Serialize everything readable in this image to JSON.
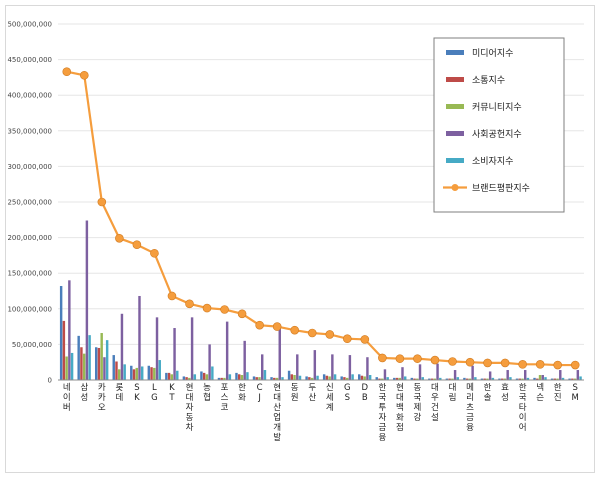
{
  "chart_data": {
    "type": "bar",
    "title": "",
    "xlabel": "",
    "ylabel": "",
    "ylim": [
      0,
      500000000
    ],
    "yticks": [
      "0",
      "50,000,000",
      "100,000,000",
      "150,000,000",
      "200,000,000",
      "250,000,000",
      "300,000,000",
      "350,000,000",
      "400,000,000",
      "450,000,000",
      "500,000,000"
    ],
    "grid": true,
    "legend_position": "top-right",
    "categories": [
      "네이버",
      "삼성",
      "카카오",
      "롯데",
      "SK",
      "LG",
      "KT",
      "현대자동차",
      "농협",
      "포스코",
      "한화",
      "CJ",
      "현대산업개발",
      "동원",
      "두산",
      "신세계",
      "GS",
      "DB",
      "한국투자금융",
      "현대백화점",
      "동국제강",
      "대우건설",
      "대림",
      "메리츠금융",
      "한솔",
      "효성",
      "한국타이어",
      "넥슨",
      "한진",
      "SM"
    ],
    "series": [
      {
        "name": "미디어지수",
        "type": "bar",
        "color": "#4a7ebb",
        "values": [
          132000000,
          62000000,
          46000000,
          35000000,
          20000000,
          20000000,
          10000000,
          5000000,
          12000000,
          3000000,
          10000000,
          5000000,
          4000000,
          13000000,
          5000000,
          8000000,
          5000000,
          8000000,
          4000000,
          3000000,
          3000000,
          2000000,
          2000000,
          3000000,
          2000000,
          2000000,
          2000000,
          3000000,
          2000000,
          2000000
        ]
      },
      {
        "name": "소통지수",
        "type": "bar",
        "color": "#be4b48",
        "values": [
          83000000,
          46000000,
          45000000,
          26000000,
          15000000,
          18000000,
          10000000,
          4000000,
          10000000,
          3000000,
          8000000,
          4000000,
          3000000,
          8000000,
          4000000,
          6000000,
          4000000,
          6000000,
          2000000,
          3000000,
          2000000,
          2000000,
          2000000,
          2000000,
          2000000,
          2000000,
          2000000,
          2000000,
          2000000,
          2000000
        ]
      },
      {
        "name": "커뮤니티지수",
        "type": "bar",
        "color": "#98b954",
        "values": [
          33000000,
          37000000,
          66000000,
          15000000,
          17000000,
          17000000,
          8000000,
          3000000,
          8000000,
          3000000,
          7000000,
          4000000,
          3000000,
          7000000,
          3000000,
          5000000,
          3000000,
          5000000,
          2000000,
          3000000,
          2000000,
          2000000,
          2000000,
          2000000,
          2000000,
          2000000,
          2000000,
          7000000,
          2000000,
          2000000
        ]
      },
      {
        "name": "사회공헌지수",
        "type": "bar",
        "color": "#7d60a0",
        "values": [
          140000000,
          224000000,
          32000000,
          93000000,
          118000000,
          88000000,
          73000000,
          88000000,
          50000000,
          82000000,
          55000000,
          36000000,
          73000000,
          36000000,
          42000000,
          36000000,
          35000000,
          32000000,
          15000000,
          18000000,
          22000000,
          23000000,
          14000000,
          20000000,
          12000000,
          14000000,
          14000000,
          7000000,
          14000000,
          14000000
        ]
      },
      {
        "name": "소비자지수",
        "type": "bar",
        "color": "#46aac5",
        "values": [
          38000000,
          63000000,
          56000000,
          22000000,
          19000000,
          28000000,
          13000000,
          8000000,
          19000000,
          8000000,
          11000000,
          14000000,
          4000000,
          6000000,
          6000000,
          8000000,
          8000000,
          7000000,
          4000000,
          5000000,
          4000000,
          3000000,
          4000000,
          4000000,
          3000000,
          4000000,
          3000000,
          4000000,
          3000000,
          5000000
        ]
      },
      {
        "name": "브랜드평판지수",
        "type": "line",
        "color": "#f59d3d",
        "values": [
          433000000,
          428000000,
          250000000,
          199000000,
          190000000,
          178000000,
          118000000,
          107000000,
          101000000,
          99000000,
          93000000,
          77000000,
          75000000,
          70000000,
          66000000,
          64000000,
          58000000,
          57000000,
          31000000,
          30000000,
          30000000,
          28000000,
          26000000,
          25000000,
          24000000,
          24000000,
          22000000,
          22000000,
          21000000,
          21000000
        ]
      }
    ]
  }
}
